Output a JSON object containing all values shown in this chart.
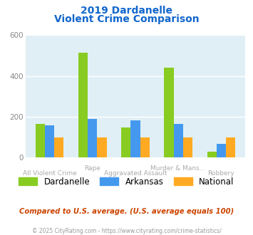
{
  "title_line1": "2019 Dardanelle",
  "title_line2": "Violent Crime Comparison",
  "categories": [
    "All Violent Crime",
    "Rape",
    "Aggravated Assault",
    "Murder & Mans...",
    "Robbery"
  ],
  "top_labels": [
    "",
    "Rape",
    "",
    "Murder & Mans...",
    ""
  ],
  "bottom_labels": [
    "All Violent Crime",
    "",
    "Aggravated Assault",
    "",
    "Robbery"
  ],
  "dardanelle": [
    165,
    515,
    148,
    440,
    28
  ],
  "arkansas": [
    158,
    190,
    182,
    165,
    68
  ],
  "national": [
    100,
    100,
    100,
    100,
    100
  ],
  "colors": {
    "dardanelle": "#88cc22",
    "arkansas": "#4499ee",
    "national": "#ffaa22"
  },
  "ylim": [
    0,
    600
  ],
  "yticks": [
    0,
    200,
    400,
    600
  ],
  "background_color": "#e0eff5",
  "title_color": "#1166cc",
  "subtitle_note": "Compared to U.S. average. (U.S. average equals 100)",
  "subtitle_color": "#cc4400",
  "footnote": "© 2025 CityRating.com - https://www.cityrating.com/crime-statistics/",
  "footnote_color": "#999999",
  "legend_labels": [
    "Dardanelle",
    "Arkansas",
    "National"
  ],
  "tick_label_color": "#aaaaaa",
  "ytick_color": "#888888"
}
